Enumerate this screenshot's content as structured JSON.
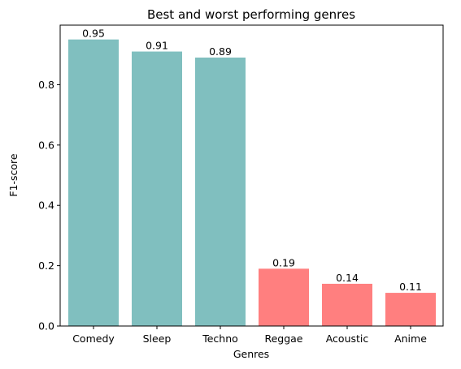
{
  "chart_data": {
    "type": "bar",
    "title": "Best and worst performing genres",
    "xlabel": "Genres",
    "ylabel": "F1-score",
    "categories": [
      "Comedy",
      "Sleep",
      "Techno",
      "Reggae",
      "Acoustic",
      "Anime"
    ],
    "values": [
      0.95,
      0.91,
      0.89,
      0.19,
      0.14,
      0.11
    ],
    "value_labels": [
      "0.95",
      "0.91",
      "0.89",
      "0.19",
      "0.14",
      "0.11"
    ],
    "bar_colors": [
      "#80bfbf",
      "#80bfbf",
      "#80bfbf",
      "#ff7f7f",
      "#ff7f7f",
      "#ff7f7f"
    ],
    "ylim": [
      0,
      0.9975
    ],
    "yticks": [
      0.0,
      0.2,
      0.4,
      0.6,
      0.8
    ],
    "ytick_labels": [
      "0.0",
      "0.2",
      "0.4",
      "0.6",
      "0.8"
    ],
    "grid": false,
    "legend": "none"
  }
}
